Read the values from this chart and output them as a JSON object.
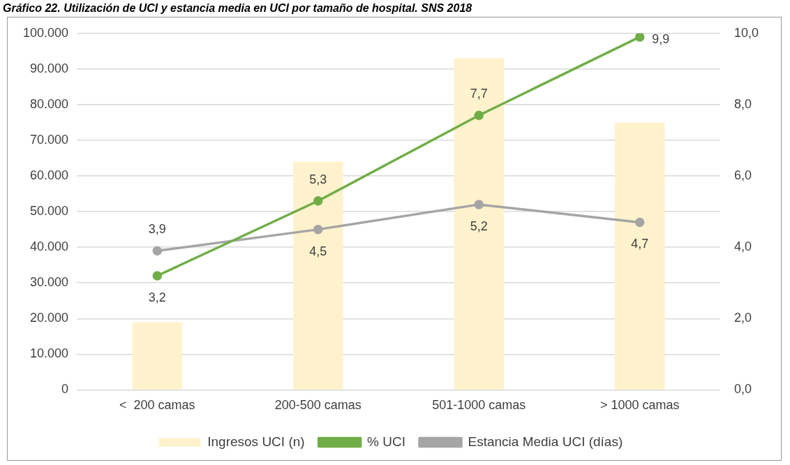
{
  "chart_data": {
    "type": "bar",
    "title": "Gráfico 22. Utilización de UCI y estancia media en UCI por tamaño de hospital. SNS 2018",
    "categories": [
      "<  200 camas",
      "200-500 camas",
      "501-1000 camas",
      "> 1000 camas"
    ],
    "series": [
      {
        "name": "Ingresos UCI (n)",
        "color": "#fff2cc",
        "values": [
          19000,
          64000,
          93000,
          75000
        ]
      },
      {
        "name": "% UCI",
        "type": "line",
        "axis": "y2",
        "color": "#70ad47",
        "values": [
          3.2,
          5.3,
          7.7,
          9.9
        ],
        "value_labels": [
          "3,2",
          "5,3",
          "7,7",
          "9,9"
        ]
      },
      {
        "name": "Estancia Media UCI (días)",
        "type": "line",
        "axis": "y2",
        "color": "#a5a5a5",
        "values": [
          3.9,
          4.5,
          5.2,
          4.7
        ],
        "value_labels": [
          "3,9",
          "4,5",
          "5,2",
          "4,7"
        ]
      }
    ],
    "ylim": [
      0,
      100000
    ],
    "yticks": [
      {
        "value": 0,
        "label": "0"
      },
      {
        "value": 10000,
        "label": "10.000"
      },
      {
        "value": 20000,
        "label": "20.000"
      },
      {
        "value": 30000,
        "label": "30.000"
      },
      {
        "value": 40000,
        "label": "40.000"
      },
      {
        "value": 50000,
        "label": "50.000"
      },
      {
        "value": 60000,
        "label": "60.000"
      },
      {
        "value": 70000,
        "label": "70.000"
      },
      {
        "value": 80000,
        "label": "80.000"
      },
      {
        "value": 90000,
        "label": "90.000"
      },
      {
        "value": 100000,
        "label": "100.000"
      }
    ],
    "y2lim": [
      0,
      10
    ],
    "y2ticks": [
      {
        "value": 0,
        "label": "0,0"
      },
      {
        "value": 2,
        "label": "2,0"
      },
      {
        "value": 4,
        "label": "4,0"
      },
      {
        "value": 6,
        "label": "6,0"
      },
      {
        "value": 8,
        "label": "8,0"
      },
      {
        "value": 10,
        "label": "10,0"
      }
    ],
    "grid": "y",
    "legend": "bottom",
    "marker": "circle",
    "line_style": "solid"
  }
}
